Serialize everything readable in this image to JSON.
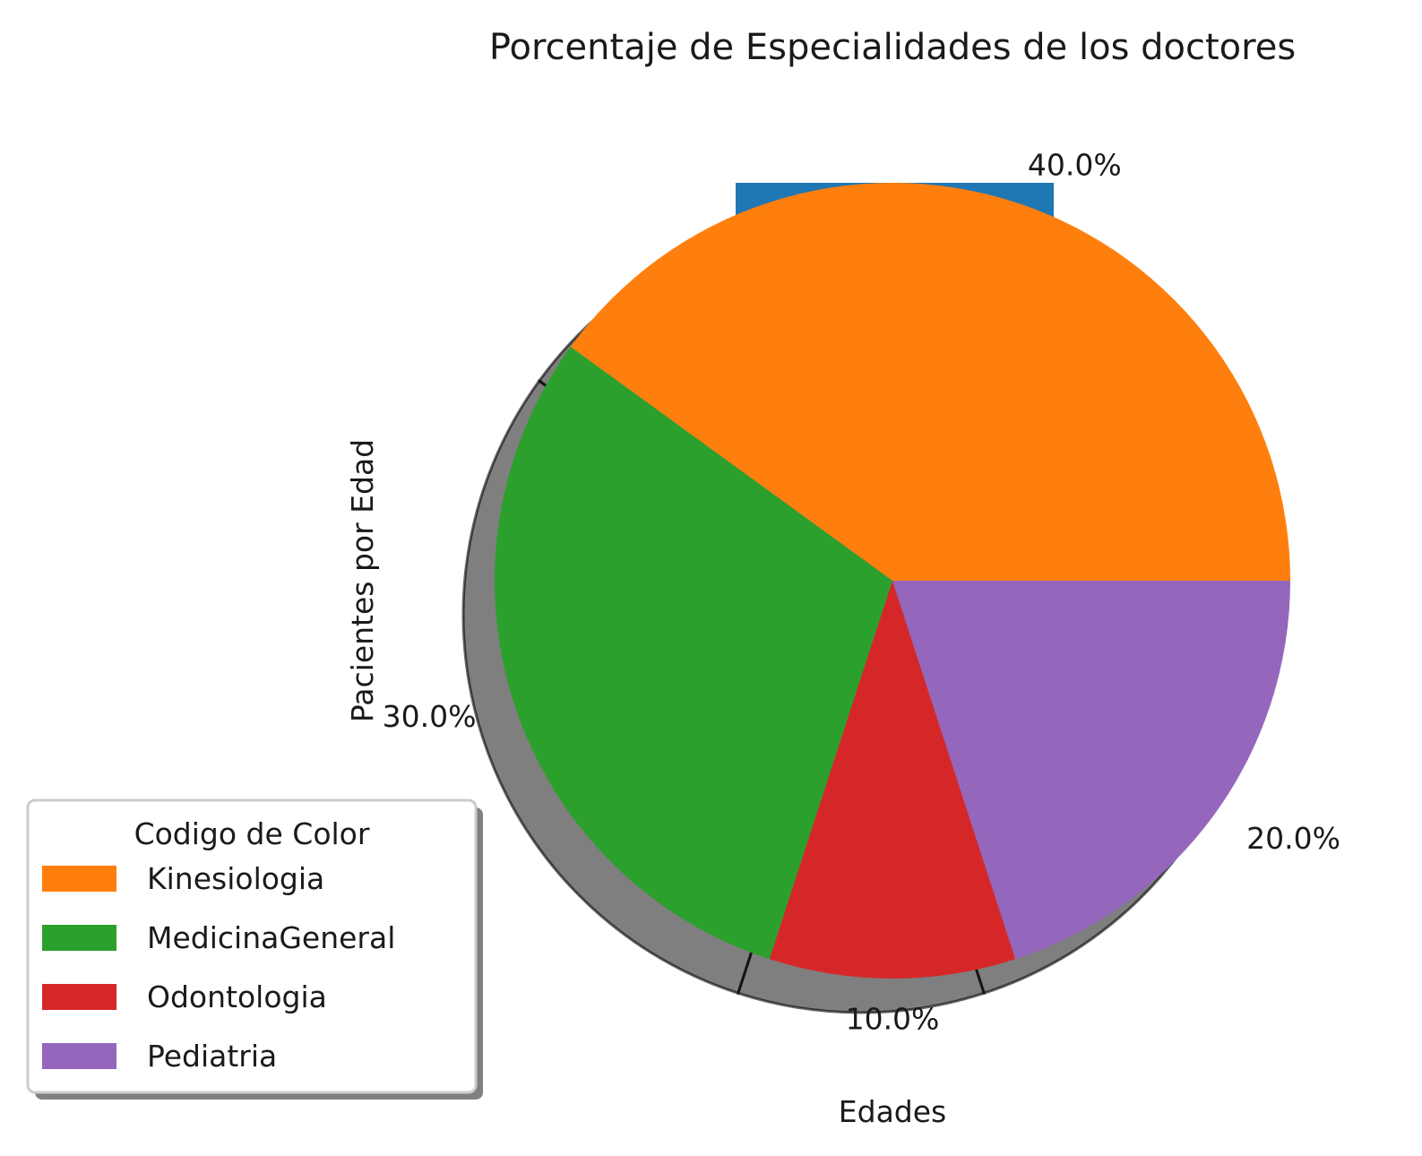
{
  "chart_data": {
    "type": "pie",
    "title": "Porcentaje de Especialidades de los doctores",
    "xlabel": "Edades",
    "ylabel": "Pacientes por Edad",
    "slices": [
      {
        "label": "Kinesiologia",
        "value": 40.0,
        "pct_label": "40.0%",
        "color": "#ff7f0e"
      },
      {
        "label": "MedicinaGeneral",
        "value": 30.0,
        "pct_label": "30.0%",
        "color": "#2ca02c"
      },
      {
        "label": "Odontologia",
        "value": 10.0,
        "pct_label": "10.0%",
        "color": "#d62728"
      },
      {
        "label": "Pediatria",
        "value": 20.0,
        "pct_label": "20.0%",
        "color": "#9467bd"
      }
    ],
    "legend": {
      "title": "Codigo de Color",
      "placement": "lower-left",
      "shadow": true
    },
    "shadow": true,
    "background_bar_color": "#1f77b4"
  }
}
